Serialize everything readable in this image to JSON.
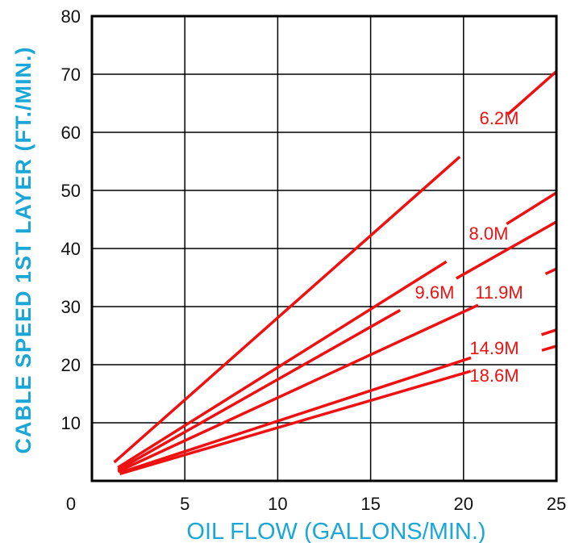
{
  "chart_data": {
    "type": "line",
    "title": "",
    "xlabel": "OIL FLOW (GALLONS/MIN.)",
    "ylabel": "CABLE SPEED 1ST LAYER (FT./MIN.)",
    "xlim": [
      0,
      25
    ],
    "ylim": [
      0,
      80
    ],
    "xticks": [
      0,
      5,
      10,
      15,
      20,
      25
    ],
    "yticks": [
      10,
      20,
      30,
      40,
      50,
      60,
      70,
      80
    ],
    "origin_label": "0",
    "grid": true,
    "series": [
      {
        "name": "6.2M",
        "x": [
          1.2,
          25
        ],
        "y": [
          3.2,
          70.5
        ]
      },
      {
        "name": "8.0M",
        "x": [
          1.4,
          25
        ],
        "y": [
          2.3,
          49.6
        ]
      },
      {
        "name": "9.6M",
        "x": [
          1.4,
          25
        ],
        "y": [
          1.9,
          44.6
        ]
      },
      {
        "name": "11.9M",
        "x": [
          1.4,
          25
        ],
        "y": [
          1.6,
          36.5
        ]
      },
      {
        "name": "14.9M",
        "x": [
          1.5,
          25
        ],
        "y": [
          1.4,
          26.0
        ]
      },
      {
        "name": "18.6M",
        "x": [
          1.5,
          25
        ],
        "y": [
          1.2,
          23.2
        ]
      }
    ],
    "line_color": "#ee1111"
  }
}
